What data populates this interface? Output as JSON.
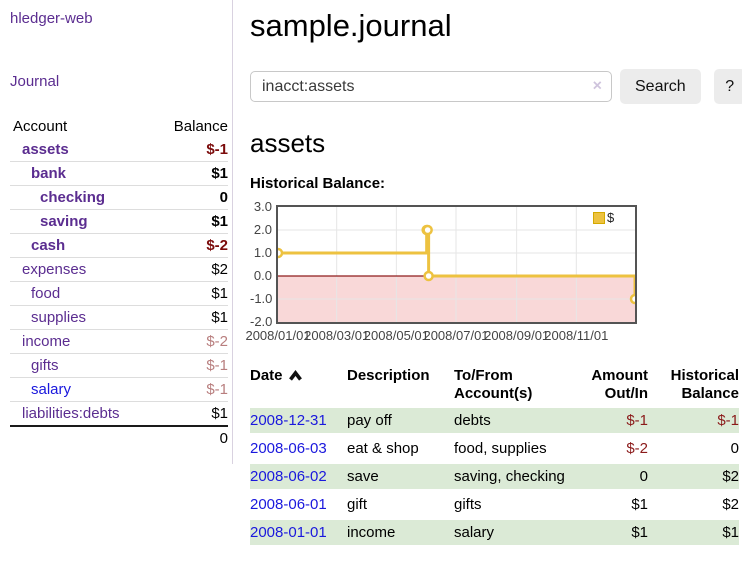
{
  "colors": {
    "purple_link": "#5b2d90",
    "blue_link": "#1a18dd",
    "negative_bold": "#7b0b0b",
    "negative": "#8b1a1a",
    "negative_soft": "#b87e7e",
    "row_green": "#dbead6",
    "chart_gold": "#edc240",
    "chart_pink": "#f9d8d8",
    "zero_line": "#8f1c1c",
    "grid": "#e6e6e6",
    "plot_border": "#545454"
  },
  "sidebar": {
    "app_title": "hledger-web",
    "journal_link": "Journal",
    "account_header": "Account",
    "balance_header": "Balance",
    "accounts": [
      {
        "name": "assets",
        "depth": 1,
        "bold": true,
        "balance": "$-1",
        "name_color": "#5b2d90",
        "balance_color": "#7b0b0b"
      },
      {
        "name": "bank",
        "depth": 2,
        "bold": true,
        "balance": "$1",
        "name_color": "#5b2d90",
        "balance_color": "#000000"
      },
      {
        "name": "checking",
        "depth": 3,
        "bold": true,
        "balance": "0",
        "name_color": "#5b2d90",
        "balance_color": "#000000"
      },
      {
        "name": "saving",
        "depth": 3,
        "bold": true,
        "balance": "$1",
        "name_color": "#5b2d90",
        "balance_color": "#000000"
      },
      {
        "name": "cash",
        "depth": 2,
        "bold": true,
        "balance": "$-2",
        "name_color": "#5b2d90",
        "balance_color": "#7b0b0b"
      },
      {
        "name": "expenses",
        "depth": 1,
        "bold": false,
        "balance": "$2",
        "name_color": "#5b2d90",
        "balance_color": "#000000"
      },
      {
        "name": "food",
        "depth": 2,
        "bold": false,
        "balance": "$1",
        "name_color": "#5b2d90",
        "balance_color": "#000000"
      },
      {
        "name": "supplies",
        "depth": 2,
        "bold": false,
        "balance": "$1",
        "name_color": "#5b2d90",
        "balance_color": "#000000"
      },
      {
        "name": "income",
        "depth": 1,
        "bold": false,
        "balance": "$-2",
        "name_color": "#5b2d90",
        "balance_color": "#b87e7e"
      },
      {
        "name": "gifts",
        "depth": 2,
        "bold": false,
        "balance": "$-1",
        "name_color": "#5b2d90",
        "balance_color": "#b87e7e"
      },
      {
        "name": "salary",
        "depth": 2,
        "bold": false,
        "balance": "$-1",
        "name_color": "#1a18dd",
        "balance_color": "#b87e7e"
      },
      {
        "name": "liabilities:debts",
        "depth": 1,
        "bold": false,
        "balance": "$1",
        "name_color": "#5b2d90",
        "balance_color": "#000000"
      }
    ],
    "total": "0"
  },
  "main": {
    "title": "sample.journal",
    "search": {
      "value": "inacct:assets",
      "clear_icon": "×",
      "button": "Search",
      "help_button": "?"
    },
    "account_heading": "assets",
    "chart_title": "Historical Balance:"
  },
  "chart_data": {
    "type": "line",
    "step": true,
    "title": "Historical Balance",
    "x_start": "2008-01-01",
    "x_end": "2008-12-31",
    "ylim": [
      -2,
      3
    ],
    "y_ticks": [
      "3.0",
      "2.0",
      "1.0",
      "0.0",
      "-1.0",
      "-2.0"
    ],
    "y_tick_values": [
      3,
      2,
      1,
      0,
      -1,
      -2
    ],
    "x_ticks": [
      "2008/01/01",
      "2008/03/01",
      "2008/05/01",
      "2008/07/01",
      "2008/09/01",
      "2008/11/01"
    ],
    "grid": true,
    "legend_position": "top-right",
    "series": [
      {
        "name": "$",
        "color": "#edc240",
        "points": [
          [
            "2008-01-01",
            1
          ],
          [
            "2008-06-01",
            2
          ],
          [
            "2008-06-02",
            2
          ],
          [
            "2008-06-03",
            0
          ],
          [
            "2008-12-31",
            -1
          ]
        ]
      }
    ]
  },
  "register": {
    "headers": {
      "date": "Date",
      "description": "Description",
      "accounts": "To/From Account(s)",
      "amount": "Amount Out/In",
      "balance": "Historical Balance"
    },
    "rows": [
      {
        "date": "2008-12-31",
        "description": "pay off",
        "accounts": "debts",
        "amount": "$-1",
        "balance": "$-1",
        "amount_neg": true,
        "balance_neg": true,
        "shaded": true
      },
      {
        "date": "2008-06-03",
        "description": "eat & shop",
        "accounts": "food, supplies",
        "amount": "$-2",
        "balance": "0",
        "amount_neg": true,
        "balance_neg": false,
        "shaded": false
      },
      {
        "date": "2008-06-02",
        "description": "save",
        "accounts": "saving, checking",
        "amount": "0",
        "balance": "$2",
        "amount_neg": false,
        "balance_neg": false,
        "shaded": true
      },
      {
        "date": "2008-06-01",
        "description": "gift",
        "accounts": "gifts",
        "amount": "$1",
        "balance": "$2",
        "amount_neg": false,
        "balance_neg": false,
        "shaded": false
      },
      {
        "date": "2008-01-01",
        "description": "income",
        "accounts": "salary",
        "amount": "$1",
        "balance": "$1",
        "amount_neg": false,
        "balance_neg": false,
        "shaded": true
      }
    ]
  }
}
